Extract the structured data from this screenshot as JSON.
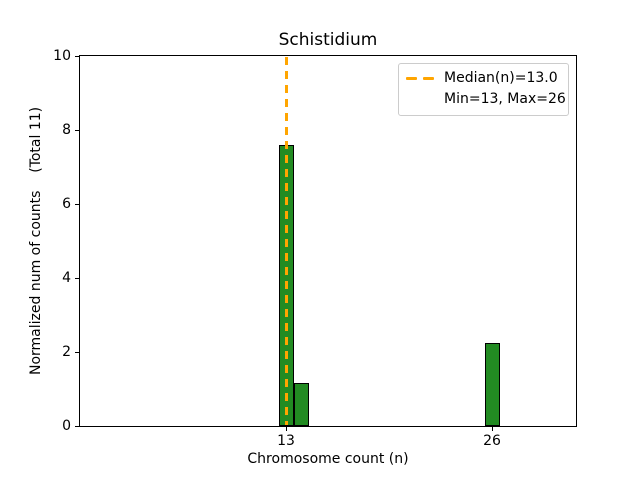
{
  "chart_data": {
    "type": "bar",
    "subtype": "histogram",
    "title": "Schistidium",
    "xlabel": "Chromosome count (n)",
    "ylabel": "Normalized num of counts    (Total 11)",
    "total": 11,
    "bars": [
      {
        "x": 13,
        "height": 7.6
      },
      {
        "x": 14,
        "height": 1.15
      },
      {
        "x": 26,
        "height": 2.25
      }
    ],
    "bar_width": 0.95,
    "bar_color": "#228B22",
    "bar_edge_color": "#000000",
    "median_line": {
      "x": 13.0,
      "color": "#FFA500",
      "style": "dashed"
    },
    "legend_entries": [
      "Median(n)=13.0",
      "Min=13, Max=26"
    ],
    "legend_position": "upper right",
    "x_ticks": [
      13,
      26
    ],
    "y_ticks": [
      0,
      2,
      4,
      6,
      8,
      10
    ],
    "xlim": [
      0,
      31.3
    ],
    "ylim": [
      0,
      10
    ],
    "grid": false,
    "background_color": "#ffffff",
    "text_color": "#000000"
  }
}
